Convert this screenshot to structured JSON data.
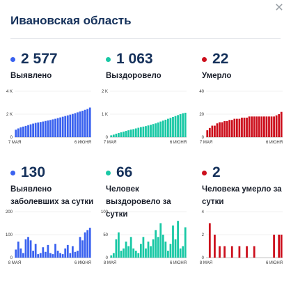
{
  "title": "Ивановская область",
  "close_icon": "close-icon",
  "colors": {
    "detected": "#3a62ef",
    "recovered": "#19c8a5",
    "died": "#cc0f1c"
  },
  "stats": [
    {
      "key": "detected",
      "value": "2 577",
      "label": "Выявлено",
      "color": "#3a62ef"
    },
    {
      "key": "recovered",
      "value": "1 063",
      "label": "Выздоровело",
      "color": "#19c8a5"
    },
    {
      "key": "died",
      "value": "22",
      "label": "Умерло",
      "color": "#cc0f1c"
    },
    {
      "key": "detected_daily",
      "value": "130",
      "label": "Выявлено заболевших за сутки",
      "color": "#3a62ef"
    },
    {
      "key": "recovered_daily",
      "value": "66",
      "label": "Человек выздоровело за сутки",
      "color": "#19c8a5"
    },
    {
      "key": "died_daily",
      "value": "2",
      "label": "Человека умерло за сутки",
      "color": "#cc0f1c"
    }
  ],
  "chart_data": [
    {
      "type": "bar",
      "name": "detected",
      "ylim": [
        0,
        4000
      ],
      "yticks": [
        "4 K",
        "2 K",
        "0"
      ],
      "xlabels": [
        "7 МАЯ",
        "6 ИЮНЯ"
      ],
      "values": [
        650,
        760,
        860,
        920,
        980,
        1050,
        1120,
        1180,
        1240,
        1280,
        1320,
        1360,
        1410,
        1450,
        1500,
        1550,
        1600,
        1660,
        1720,
        1780,
        1840,
        1900,
        1960,
        2020,
        2090,
        2160,
        2230,
        2300,
        2380,
        2450,
        2577
      ]
    },
    {
      "type": "bar",
      "name": "recovered",
      "ylim": [
        0,
        2000
      ],
      "yticks": [
        "2 K",
        "1 K",
        "0"
      ],
      "xlabels": [
        "7 МАЯ",
        "6 ИЮНЯ"
      ],
      "values": [
        80,
        110,
        150,
        180,
        210,
        240,
        270,
        300,
        330,
        350,
        380,
        410,
        440,
        460,
        480,
        510,
        540,
        570,
        600,
        640,
        680,
        720,
        760,
        800,
        840,
        880,
        920,
        960,
        1000,
        1040,
        1063
      ]
    },
    {
      "type": "bar",
      "name": "died",
      "ylim": [
        0,
        40
      ],
      "yticks": [
        "40",
        "20",
        "0"
      ],
      "xlabels": [
        "7 МАЯ",
        "6 ИЮНЯ"
      ],
      "values": [
        6,
        8,
        10,
        10,
        12,
        13,
        13,
        14,
        14,
        15,
        15,
        16,
        16,
        16,
        17,
        17,
        17,
        18,
        18,
        18,
        18,
        18,
        18,
        18,
        18,
        18,
        18,
        18,
        19,
        20,
        22
      ]
    },
    {
      "type": "bar",
      "name": "detected_daily",
      "ylim": [
        0,
        200
      ],
      "yticks": [
        "200",
        "100",
        "0"
      ],
      "xlabels": [
        "8 МАЯ",
        "6 ИЮНЯ"
      ],
      "values": [
        35,
        70,
        40,
        20,
        80,
        90,
        75,
        30,
        60,
        15,
        20,
        45,
        25,
        55,
        20,
        15,
        60,
        30,
        20,
        15,
        40,
        55,
        20,
        50,
        25,
        30,
        90,
        75,
        110,
        120,
        130
      ]
    },
    {
      "type": "bar",
      "name": "recovered_daily",
      "ylim": [
        0,
        100
      ],
      "yticks": [
        "100",
        "50",
        "0"
      ],
      "xlabels": [
        "8 МАЯ",
        "6 ИЮНЯ"
      ],
      "values": [
        5,
        10,
        40,
        55,
        15,
        20,
        35,
        25,
        45,
        20,
        15,
        10,
        30,
        45,
        20,
        35,
        25,
        40,
        60,
        45,
        75,
        50,
        35,
        15,
        30,
        70,
        40,
        80,
        20,
        25,
        66
      ]
    },
    {
      "type": "bar",
      "name": "died_daily",
      "ylim": [
        0,
        4
      ],
      "yticks": [
        "4",
        "2",
        "0"
      ],
      "xlabels": [
        "8 МАЯ",
        "6 ИЮНЯ"
      ],
      "values": [
        0,
        3,
        0,
        2,
        0,
        1,
        0,
        1,
        0,
        0,
        1,
        0,
        0,
        1,
        0,
        0,
        1,
        0,
        0,
        1,
        0,
        0,
        0,
        0,
        0,
        0,
        0,
        2,
        0,
        2,
        2
      ]
    }
  ]
}
